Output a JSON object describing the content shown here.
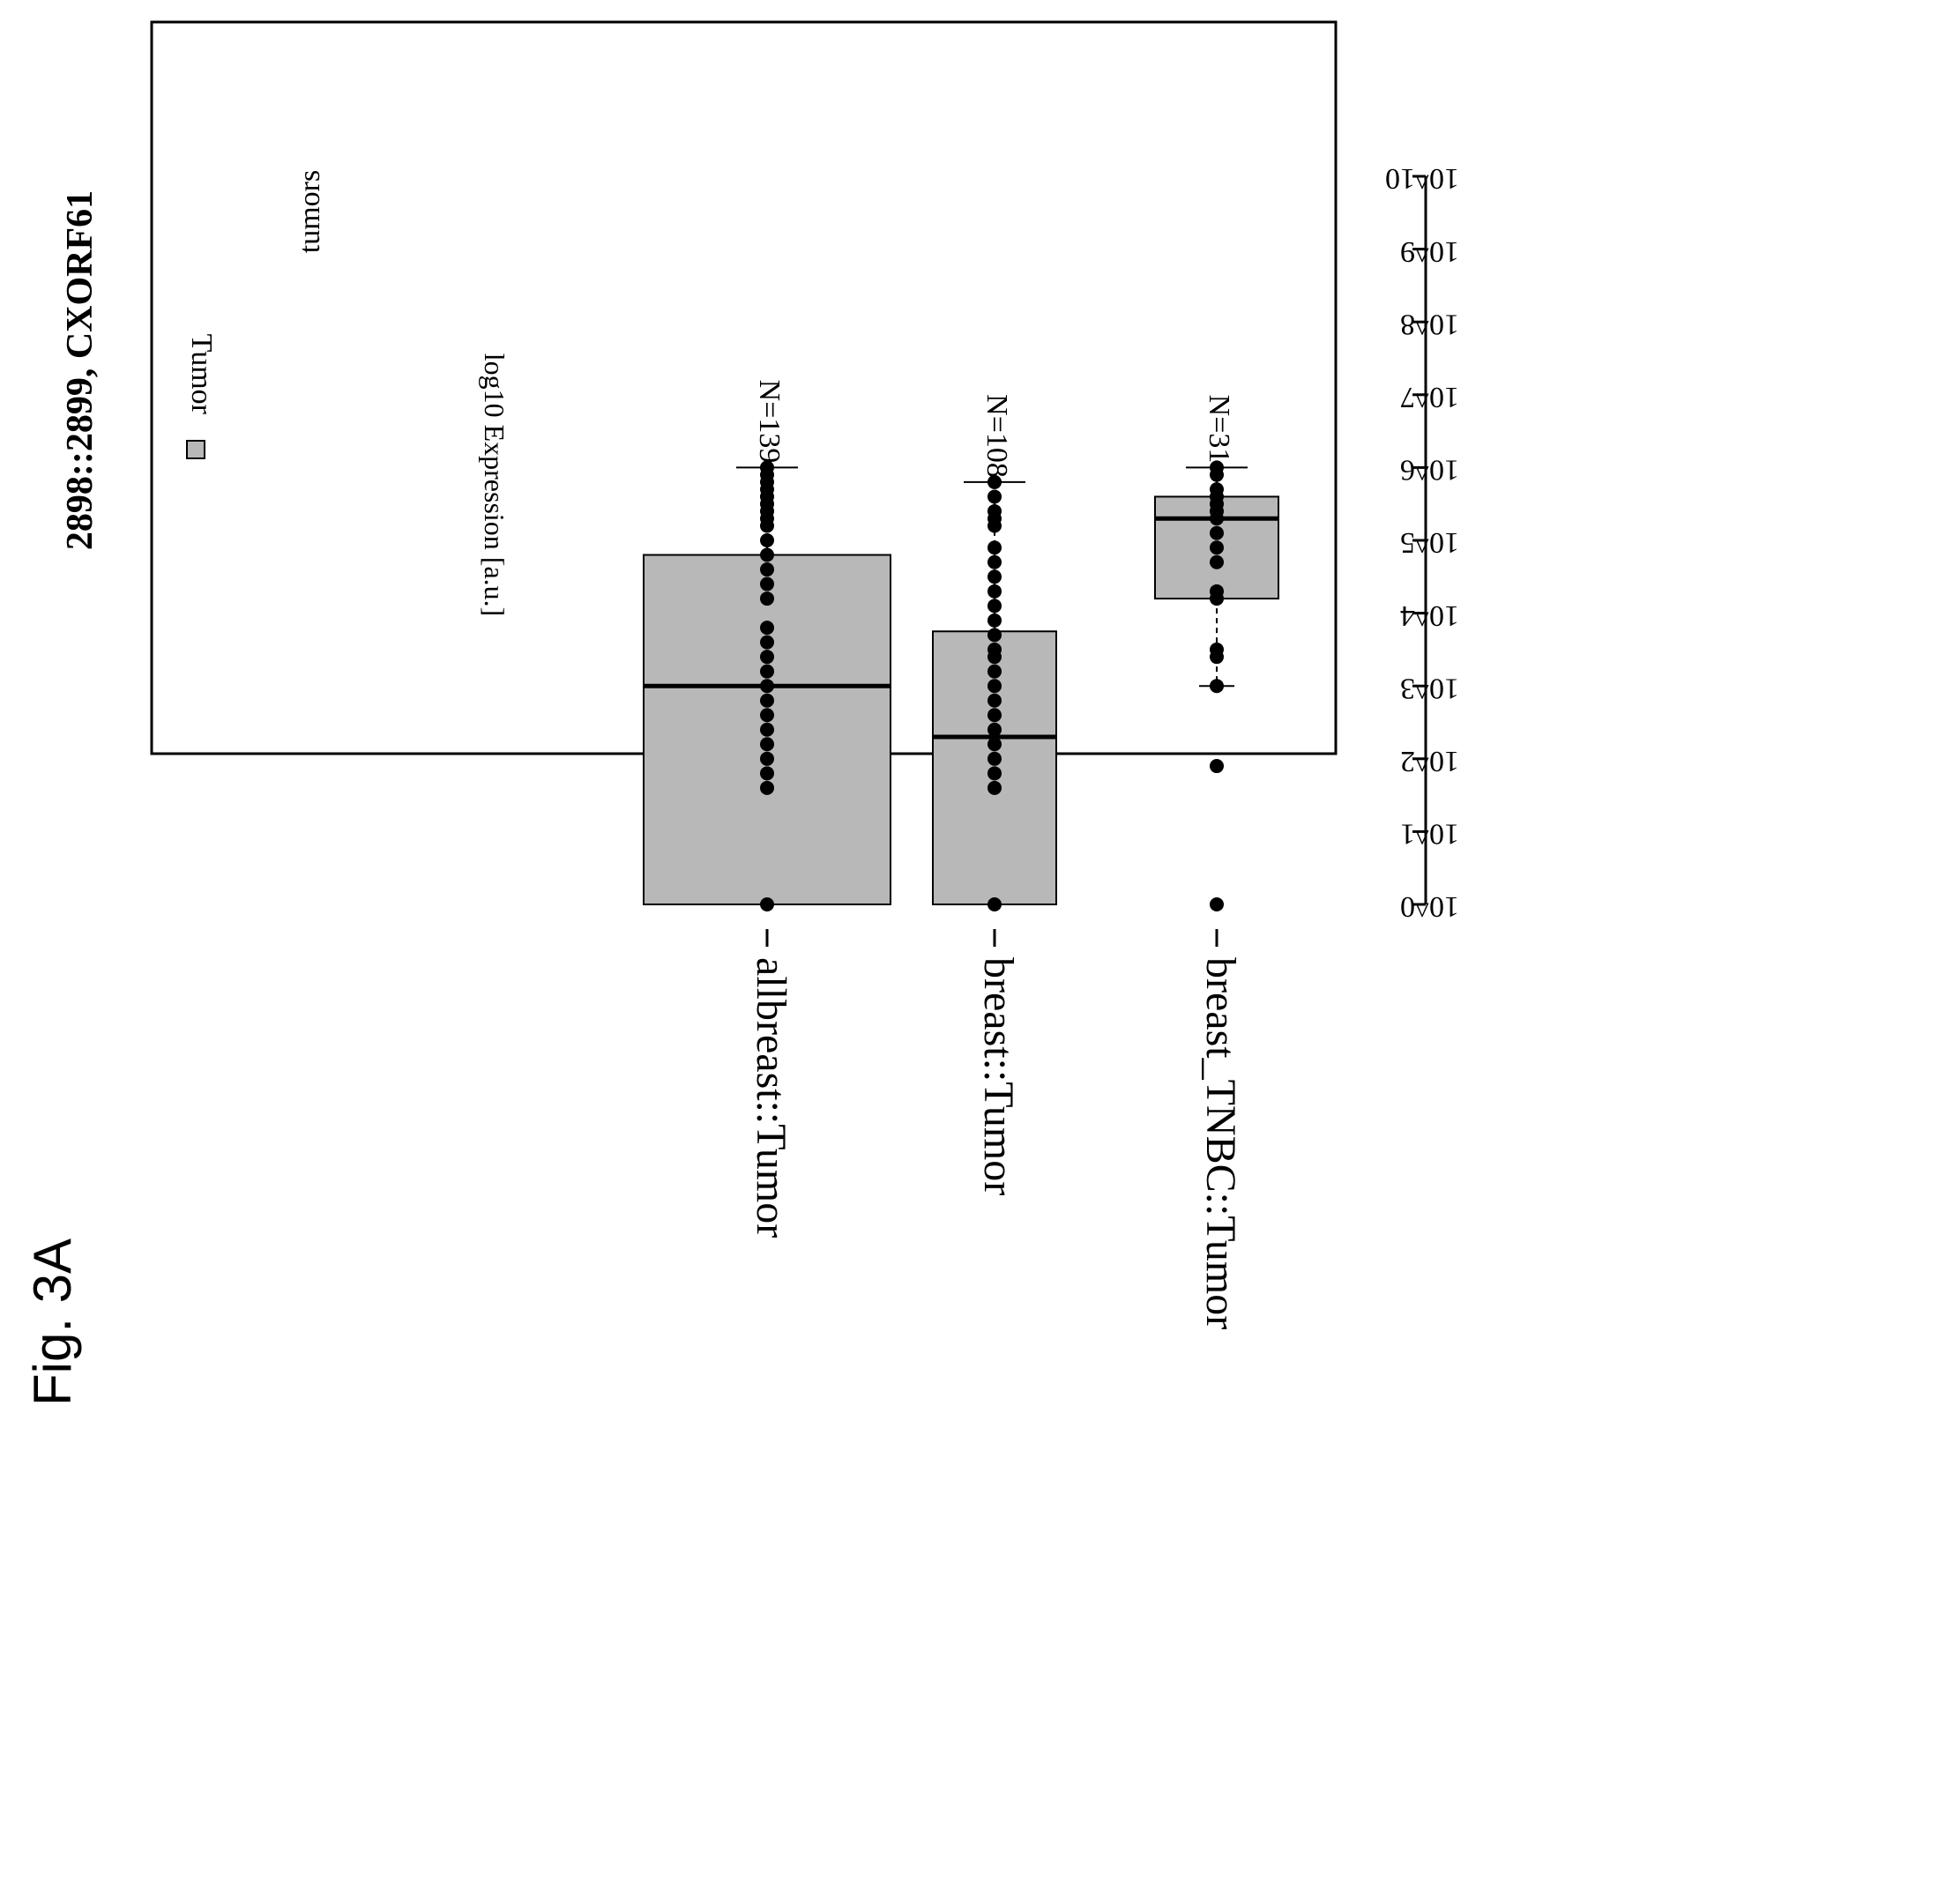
{
  "figure_label": "Fig. 3A",
  "chart_data": {
    "type": "box",
    "title": "2898::2899, CXORF61",
    "subtitle": "tumors",
    "ylabel": "log10 Expression [a.u.]",
    "yscale": "log10",
    "ylim_exponent": [
      0,
      10
    ],
    "y_ticks": [
      "10^0",
      "10^1",
      "10^2",
      "10^3",
      "10^4",
      "10^5",
      "10^6",
      "10^7",
      "10^8",
      "10^9",
      "10^10"
    ],
    "legend": [
      {
        "label": "Tumor",
        "color": "#b8b8b8"
      }
    ],
    "fill_color": "#b8b8b8",
    "categories": [
      "allbreast::Tumor",
      "breast::Tumor",
      "breast_TNBC::Tumor"
    ],
    "boxes": [
      {
        "category": "allbreast::Tumor",
        "n_label": "N=139",
        "q1_exp": 0.0,
        "median_exp": 3.0,
        "q3_exp": 4.8,
        "whisker_high_exp": 6.0,
        "points_exp": [
          0.0,
          1.6,
          1.8,
          2.0,
          2.2,
          2.4,
          2.6,
          2.8,
          3.0,
          3.2,
          3.4,
          3.6,
          3.8,
          4.2,
          4.4,
          4.6,
          4.8,
          5.0,
          5.2,
          5.3,
          5.4,
          5.5,
          5.6,
          5.7,
          5.8,
          5.9,
          6.0
        ]
      },
      {
        "category": "breast::Tumor",
        "n_label": "N=108",
        "q1_exp": 0.0,
        "median_exp": 2.3,
        "q3_exp": 3.75,
        "whisker_high_exp": 5.8,
        "points_exp": [
          0.0,
          1.6,
          1.8,
          2.0,
          2.2,
          2.4,
          2.6,
          2.8,
          3.0,
          3.2,
          3.4,
          3.5,
          3.7,
          3.9,
          4.1,
          4.3,
          4.5,
          4.7,
          4.9,
          5.2,
          5.3,
          5.4,
          5.6,
          5.8
        ]
      },
      {
        "category": "breast_TNBC::Tumor",
        "n_label": "N=31",
        "q1_exp": 4.2,
        "median_exp": 5.3,
        "q3_exp": 5.6,
        "whisker_low_exp": 3.0,
        "whisker_high_exp": 6.0,
        "points_exp": [
          0.0,
          1.9,
          3.0,
          3.4,
          3.5,
          4.2,
          4.3,
          4.7,
          4.9,
          5.1,
          5.3,
          5.4,
          5.5,
          5.6,
          5.7,
          5.9,
          6.0
        ]
      }
    ]
  }
}
